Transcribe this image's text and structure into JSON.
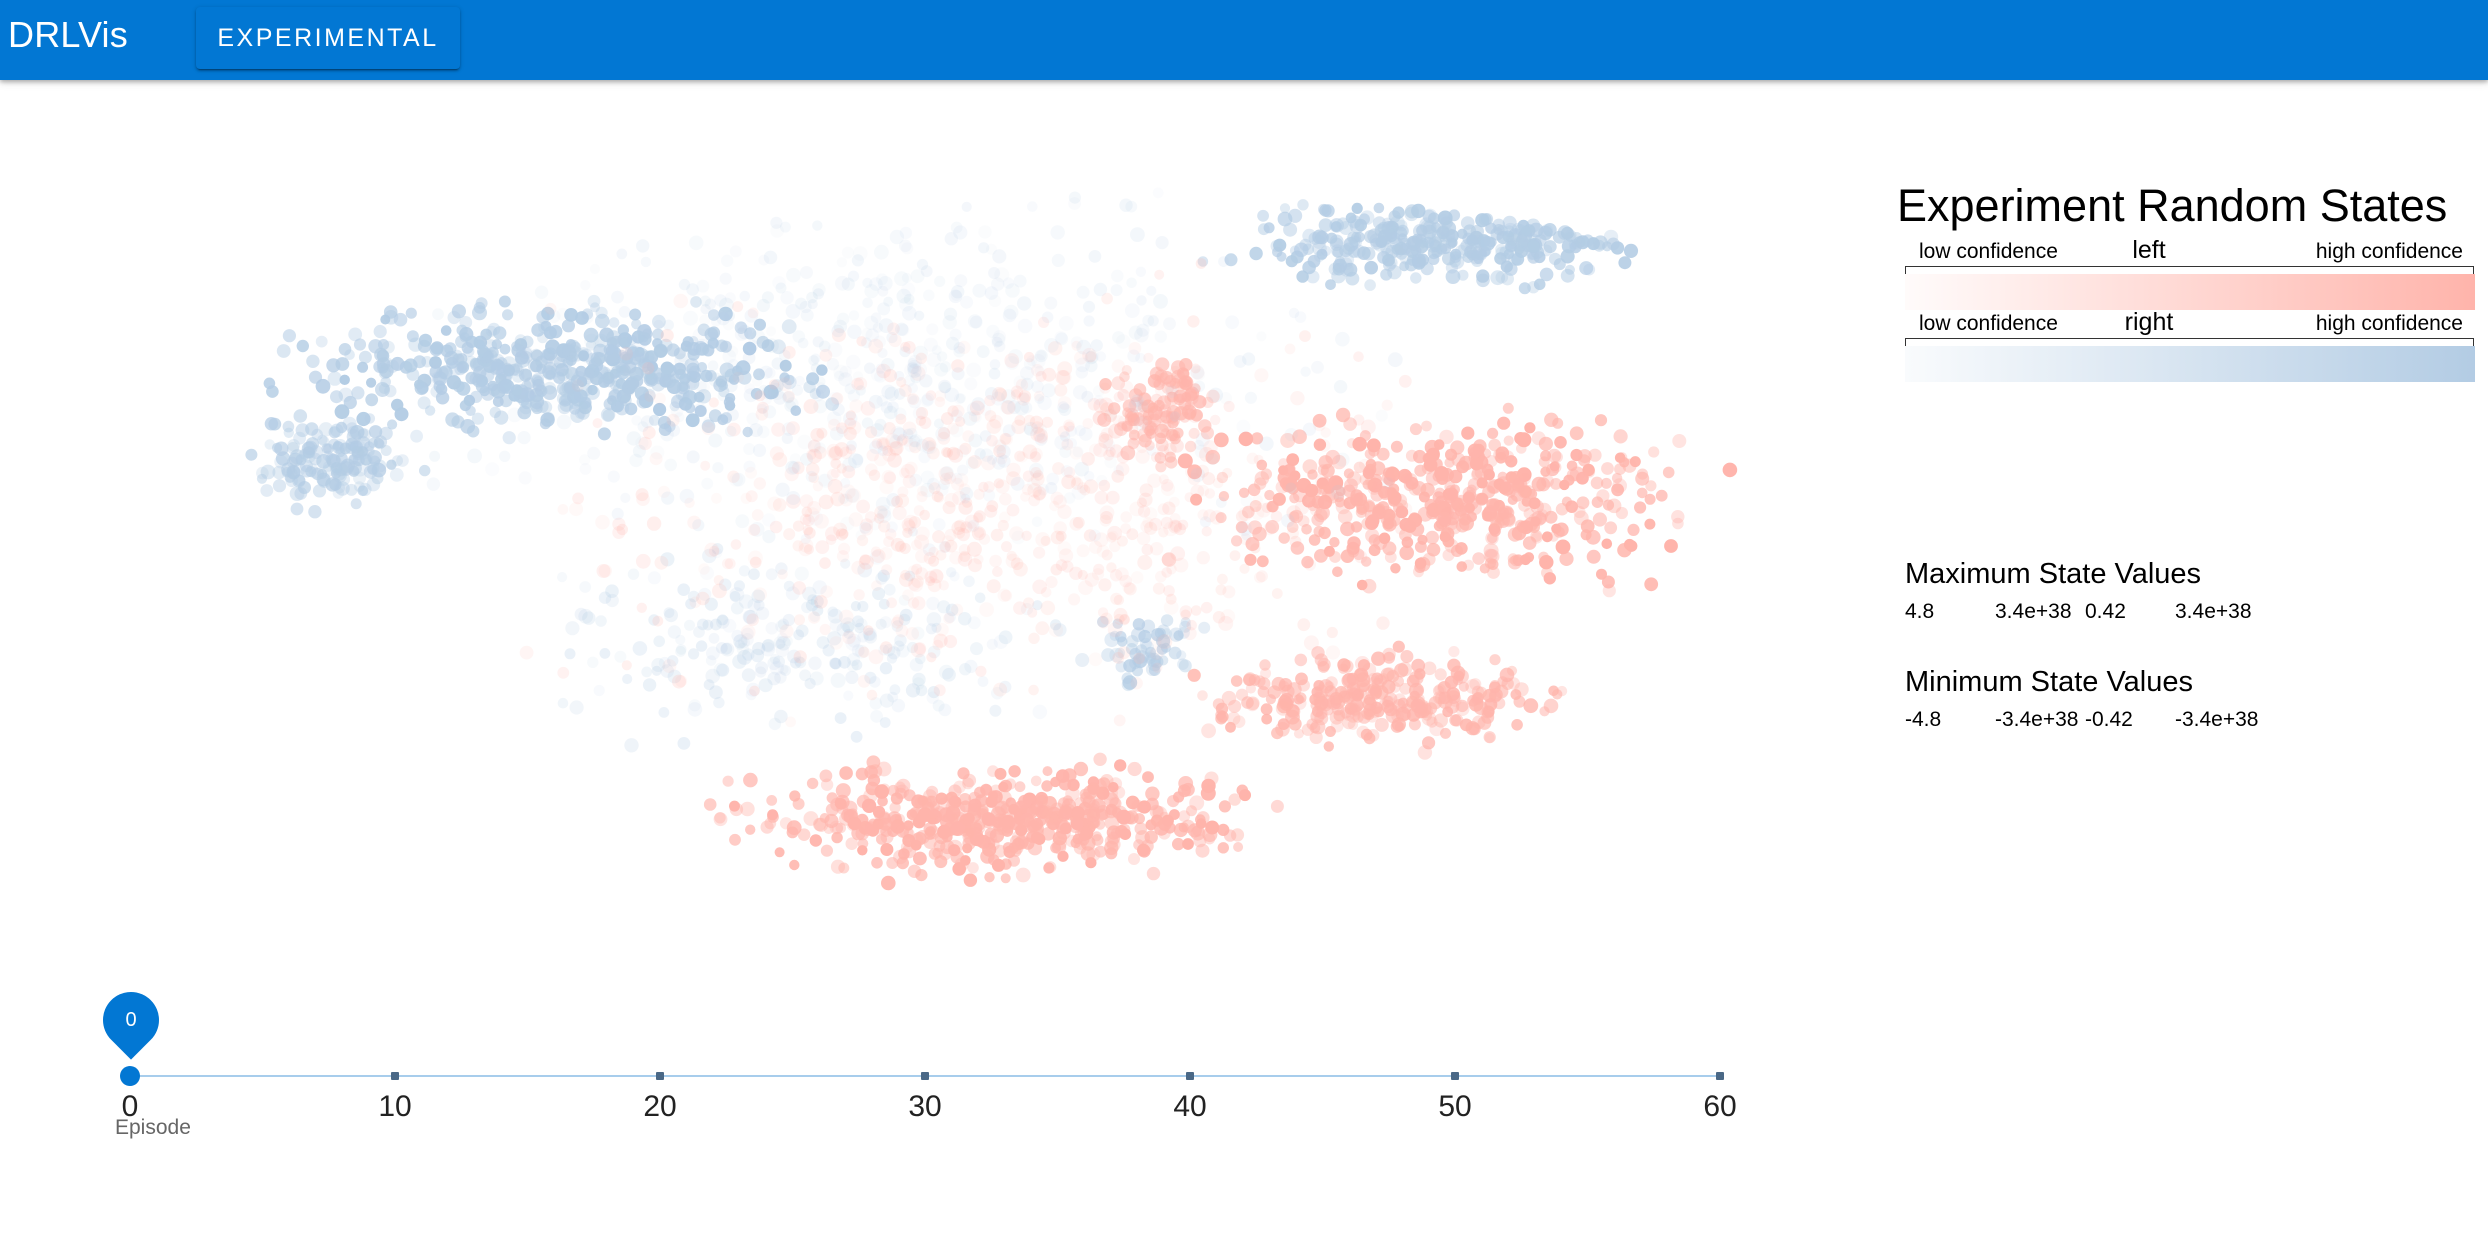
{
  "app": {
    "title": "DRLVis",
    "experimental_button": "EXPERIMENTAL"
  },
  "legend": {
    "title": "Experiment Random States",
    "rows": [
      {
        "action": "left",
        "low": "low confidence",
        "high": "high confidence",
        "color": "#ffb4ab"
      },
      {
        "action": "right",
        "low": "low confidence",
        "high": "high confidence",
        "color": "#b3cce4"
      }
    ]
  },
  "max_stats": {
    "title": "Maximum State Values",
    "values": [
      "4.8",
      "3.4e+38",
      "0.42",
      "3.4e+38"
    ]
  },
  "min_stats": {
    "title": "Minimum State Values",
    "values": [
      "-4.8",
      "-3.4e+38",
      "-0.42",
      "-3.4e+38"
    ]
  },
  "slider": {
    "current_value": "0",
    "caption": "Episode",
    "min": 0,
    "max": 60,
    "ticks": [
      "0",
      "10",
      "20",
      "30",
      "40",
      "50",
      "60"
    ]
  },
  "colors": {
    "appbar": "#0277d3",
    "left_action": "#ffb4ab",
    "right_action": "#b3cce4"
  }
}
